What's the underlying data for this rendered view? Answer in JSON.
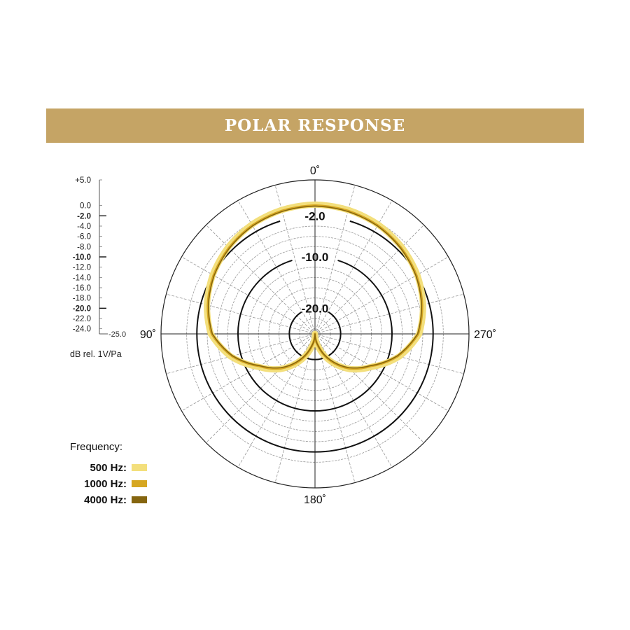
{
  "chart_data": {
    "type": "polar-line",
    "title": "POLAR RESPONSE",
    "radial_unit_label": "dB rel. 1V/Pa",
    "rlim": [
      -25,
      5
    ],
    "radial_ticks": [
      "+5.0",
      "0.0",
      "-2.0",
      "-4.0",
      "-6.0",
      "-8.0",
      "-10.0",
      "-12.0",
      "-14.0",
      "-16.0",
      "-18.0",
      "-20.0",
      "-22.0",
      "-24.0",
      "-25.0"
    ],
    "radial_tick_values": [
      5,
      0,
      -2,
      -4,
      -6,
      -8,
      -10,
      -12,
      -14,
      -16,
      -18,
      -20,
      -22,
      -24,
      -25
    ],
    "major_rings": [
      -2,
      -10,
      -20
    ],
    "major_ring_labels": [
      "-2.0",
      "-10.0",
      "-20.0"
    ],
    "angle_labels": [
      {
        "angle": 0,
        "text": "0˚"
      },
      {
        "angle": 90,
        "text": "90˚"
      },
      {
        "angle": 180,
        "text": "180˚"
      },
      {
        "angle": 270,
        "text": "270˚"
      }
    ],
    "angle_step_deg": 15,
    "angles": [
      0,
      15,
      30,
      45,
      60,
      75,
      90,
      105,
      120,
      135,
      150,
      165,
      180
    ],
    "series": [
      {
        "name": "500 Hz:",
        "color": "#f3df7c",
        "values": [
          0.2,
          0,
          -0.4,
          -1.1,
          -2.0,
          -3.2,
          -4.7,
          -8.0,
          -12.2,
          -15.3,
          -18.8,
          -22.3,
          -25
        ]
      },
      {
        "name": "1000 Hz:",
        "color": "#d6a722",
        "values": [
          0,
          -0.2,
          -0.6,
          -1.3,
          -2.2,
          -3.4,
          -4.9,
          -8.3,
          -12.5,
          -15.5,
          -19,
          -22.5,
          -25
        ]
      },
      {
        "name": "4000 Hz:",
        "color": "#85650f",
        "values": [
          -0.1,
          -0.3,
          -0.7,
          -1.4,
          -2.3,
          -3.5,
          -5.0,
          -8.4,
          -12.6,
          -15.7,
          -19.2,
          -22.6,
          -25
        ]
      }
    ],
    "legend_title": "Frequency:",
    "legend_position": "bottom-left",
    "grid": true
  }
}
